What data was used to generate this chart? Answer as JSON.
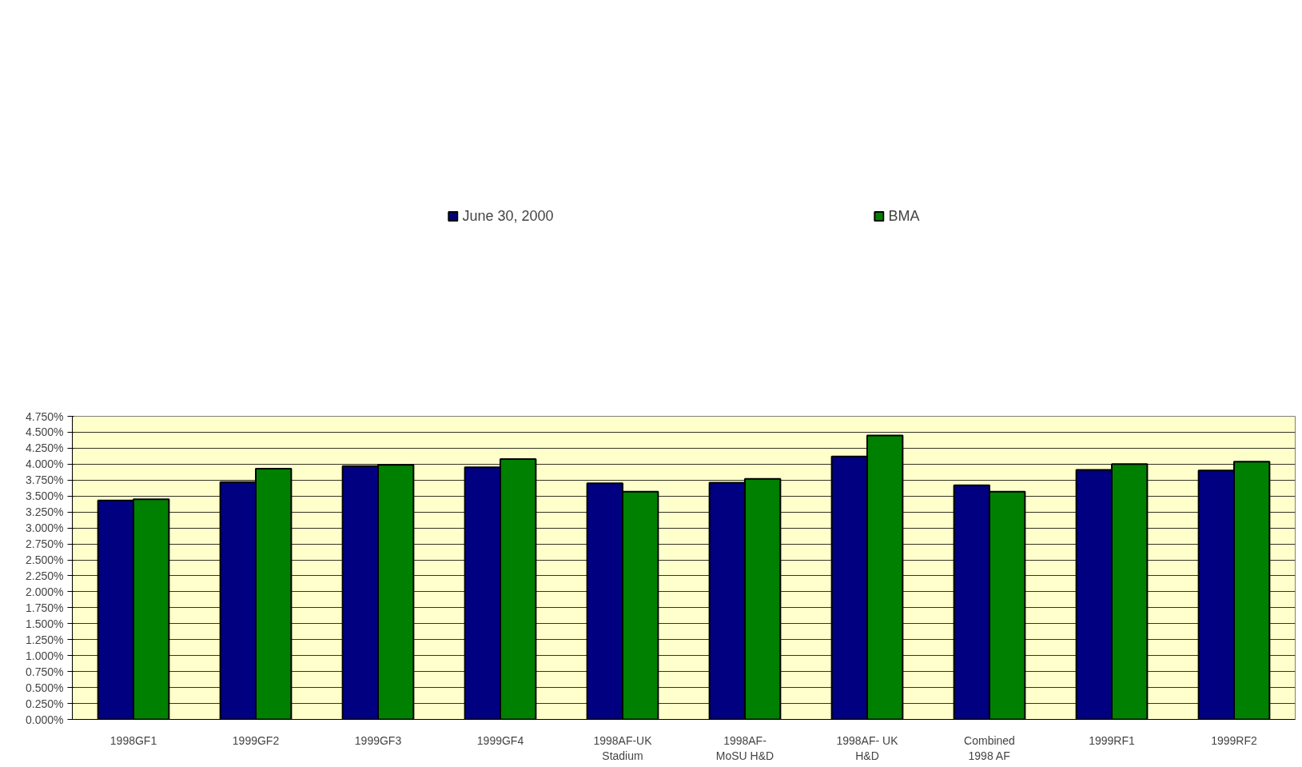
{
  "chart_data": {
    "type": "bar",
    "categories": [
      "1998GF1",
      "1999GF2",
      "1999GF3",
      "1999GF4",
      "1998AF-UK\nStadium",
      "1998AF-\nMoSU H&D",
      "1998AF- UK\nH&D",
      "Combined\n1998 AF",
      "1999RF1",
      "1999RF2"
    ],
    "series": [
      {
        "name": "June 30, 2000",
        "color": "#000080",
        "values": [
          3.43,
          3.72,
          3.97,
          3.95,
          3.7,
          3.71,
          4.12,
          3.67,
          3.91,
          3.9
        ]
      },
      {
        "name": "BMA",
        "color": "#008000",
        "values": [
          3.45,
          3.93,
          3.99,
          4.08,
          3.57,
          3.77,
          4.45,
          3.57,
          4.0,
          4.04
        ]
      }
    ],
    "ylim": [
      0,
      4.75
    ],
    "yticks": [
      {
        "value": 0,
        "label": "0.000%"
      },
      {
        "value": 0.25,
        "label": "0.250%"
      },
      {
        "value": 0.5,
        "label": "0.500%"
      },
      {
        "value": 0.75,
        "label": "0.750%"
      },
      {
        "value": 1,
        "label": "1.000%"
      },
      {
        "value": 1.25,
        "label": "1.250%"
      },
      {
        "value": 1.5,
        "label": "1.500%"
      },
      {
        "value": 1.75,
        "label": "1.750%"
      },
      {
        "value": 2,
        "label": "2.000%"
      },
      {
        "value": 2.25,
        "label": "2.250%"
      },
      {
        "value": 2.5,
        "label": "2.500%"
      },
      {
        "value": 2.75,
        "label": "2.750%"
      },
      {
        "value": 3,
        "label": "3.000%"
      },
      {
        "value": 3.25,
        "label": "3.250%"
      },
      {
        "value": 3.5,
        "label": "3.500%"
      },
      {
        "value": 3.75,
        "label": "3.750%"
      },
      {
        "value": 4,
        "label": "4.000%"
      },
      {
        "value": 4.25,
        "label": "4.250%"
      },
      {
        "value": 4.5,
        "label": "4.500%"
      },
      {
        "value": 4.75,
        "label": "4.750%"
      }
    ],
    "grid": "y",
    "legend": "top"
  }
}
